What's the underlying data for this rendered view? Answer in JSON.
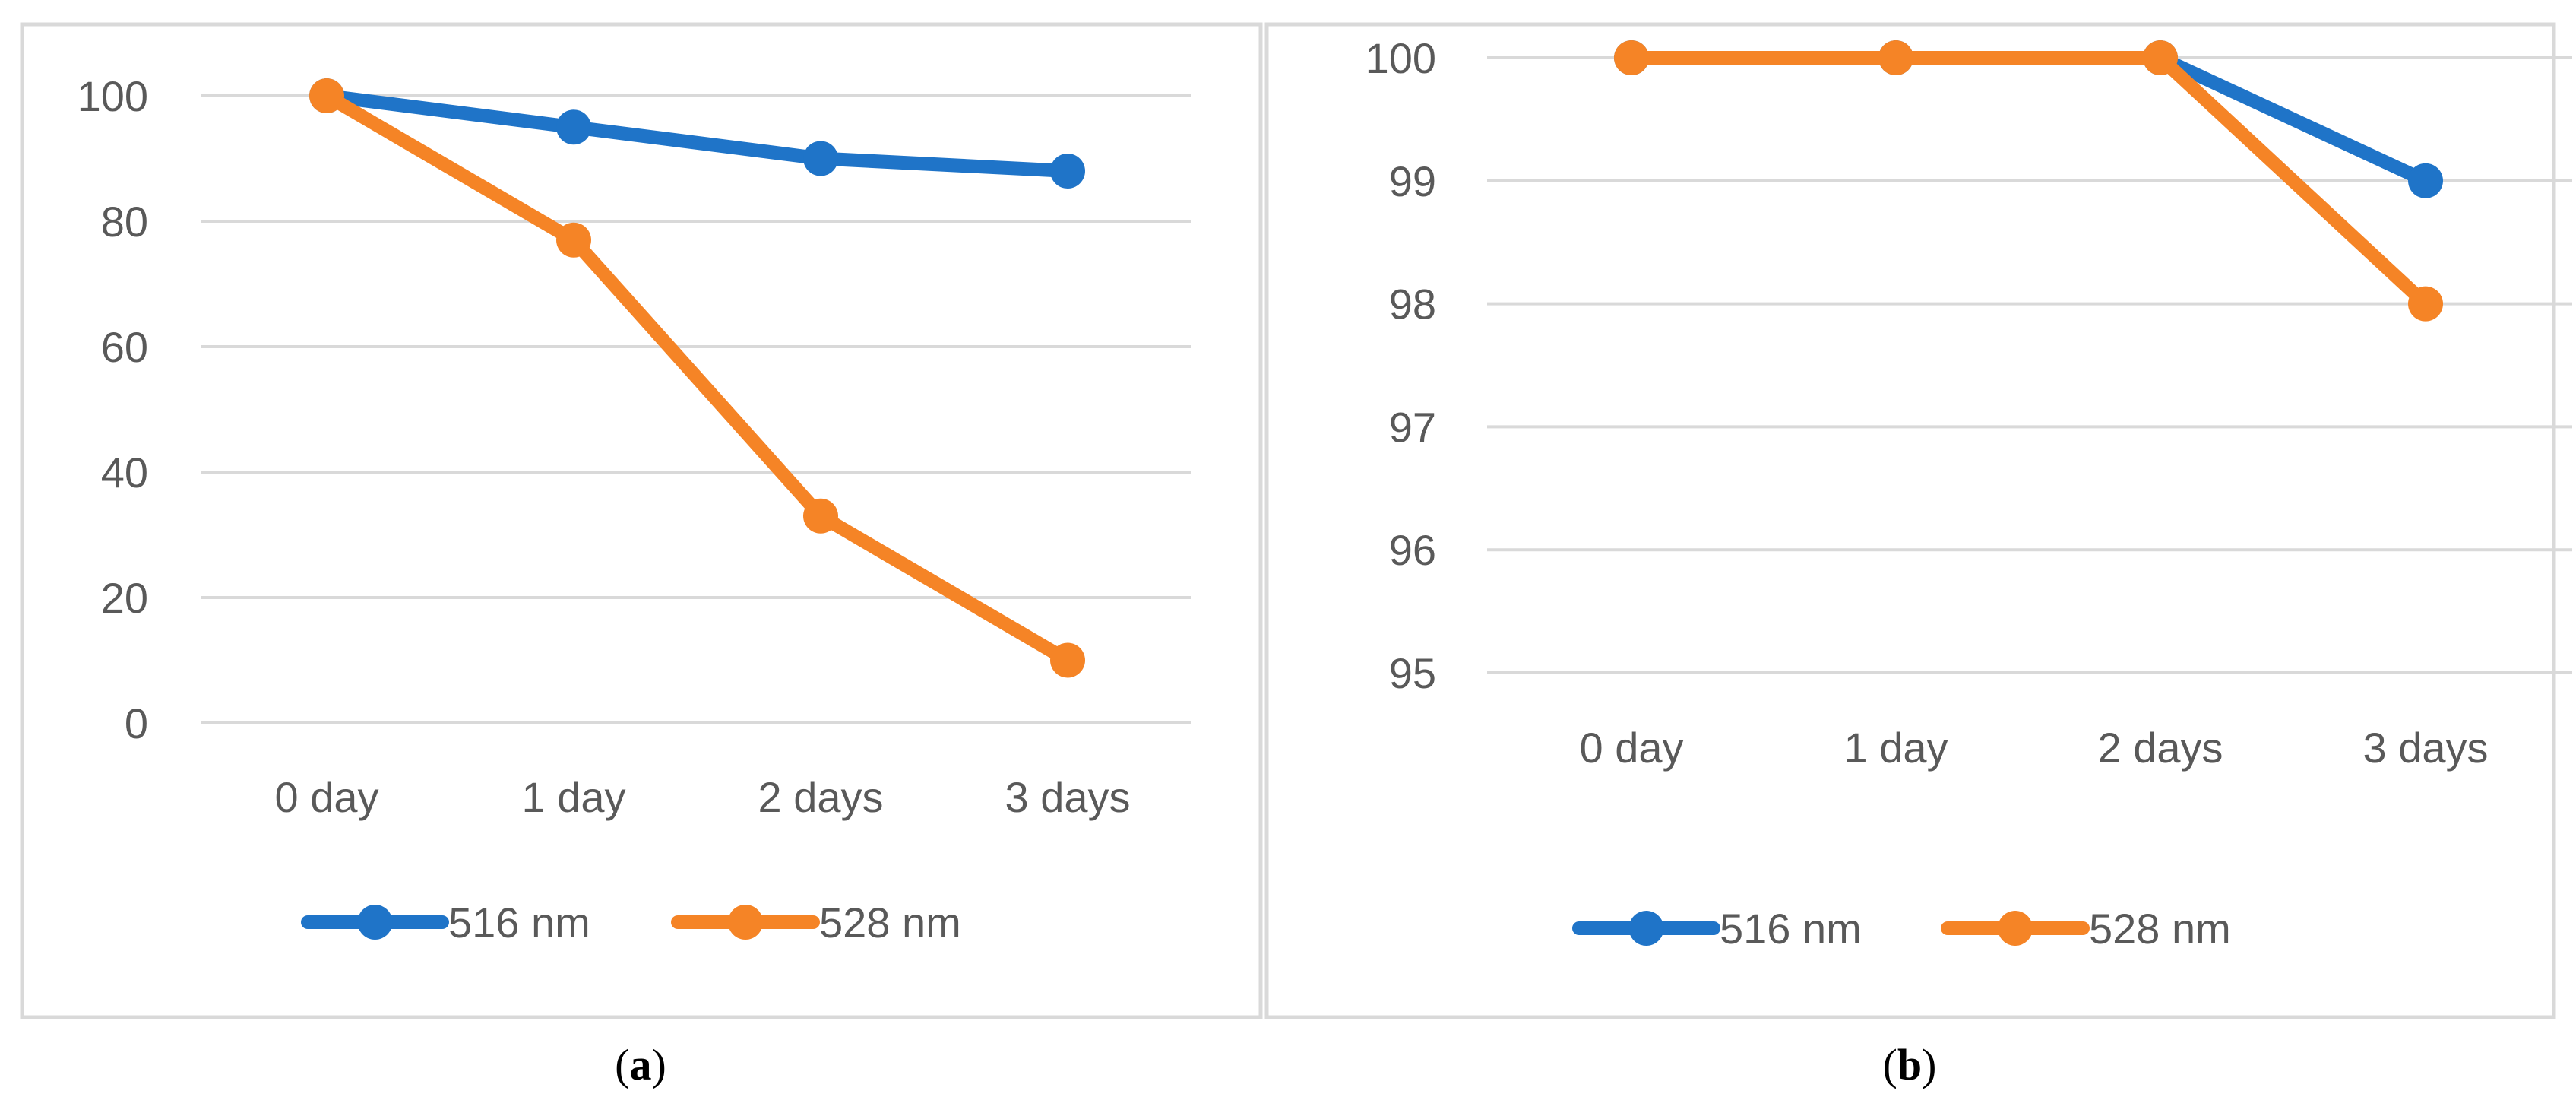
{
  "colors": {
    "series_516": "#1f74c8",
    "series_528": "#f58426",
    "grid": "#d9d9d9",
    "frame": "#d9d9d9",
    "text": "#595959"
  },
  "chart_data": [
    {
      "type": "line",
      "panel_label": "a",
      "categories": [
        "0 day",
        "1 day",
        "2 days",
        "3 days"
      ],
      "series": [
        {
          "name": "516 nm",
          "values": [
            100,
            95,
            90,
            88
          ]
        },
        {
          "name": "528 nm",
          "values": [
            100,
            77,
            33,
            10
          ]
        }
      ],
      "ylim": [
        0,
        100
      ],
      "yticks": [
        0,
        20,
        40,
        60,
        80,
        100
      ],
      "grid": true,
      "legend": "bottom",
      "marker": "circle"
    },
    {
      "type": "line",
      "panel_label": "b",
      "categories": [
        "0 day",
        "1 day",
        "2 days",
        "3 days"
      ],
      "series": [
        {
          "name": "516 nm",
          "values": [
            100,
            100,
            100,
            99
          ]
        },
        {
          "name": "528 nm",
          "values": [
            100,
            100,
            100,
            98
          ]
        }
      ],
      "ylim": [
        95,
        100
      ],
      "yticks": [
        95,
        96,
        97,
        98,
        99,
        100
      ],
      "grid": true,
      "legend": "bottom",
      "marker": "circle"
    }
  ]
}
